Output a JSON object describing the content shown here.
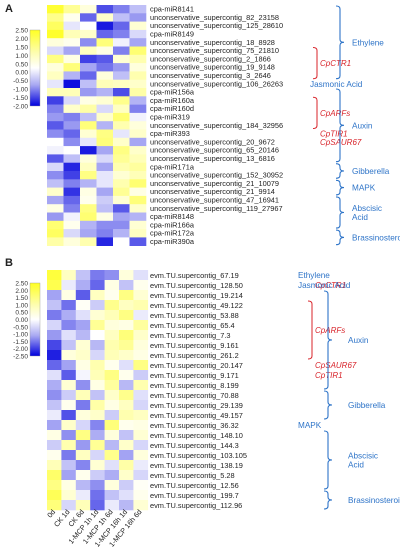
{
  "chart_data": [
    {
      "type": "heatmap",
      "panel_label": "A",
      "colorbar": {
        "ticks": [
          "2.50",
          "2.00",
          "1.50",
          "1.00",
          "0.50",
          "0.00",
          "-0.50",
          "-1.00",
          "-1.50",
          "-2.00"
        ],
        "min": -2.0,
        "max": 2.5,
        "colors": {
          "low": "#0000dd",
          "mid": "#ffffff",
          "high": "#ffff22"
        }
      },
      "columns": 6,
      "rows": [
        "cpa-miR8141",
        "unconservative_supercontig_82_23158",
        "unconservative_supercontig_125_28610",
        "cpa-miR8149",
        "unconservative_supercontig_18_8928",
        "unconservative_supercontig_75_21810",
        "unconservative_supercontig_2_1866",
        "unconservative_supercontig_19_9148",
        "unconservative_supercontig_3_2646",
        "unconservative_supercontig_106_26263",
        "cpa-miR156a",
        "cpa-miR160a",
        "cpa-miR160d",
        "cpa-miR319",
        "unconservative_supercontig_184_32956",
        "cpa-miR393",
        "unconservative_supercontig_20_9672",
        "unconservative_supercontig_65_20146",
        "unconservative_supercontig_13_6816",
        "cpa-miR171a",
        "unconservative_supercontig_152_30952",
        "unconservative_supercontig_21_10079",
        "unconservative_supercontig_21_9914",
        "unconservative_supercontig_47_16941",
        "unconservative_supercontig_119_27967",
        "cpa-miR8148",
        "cpa-miR166a",
        "cpa-miR172a",
        "cpa-miR390a"
      ],
      "values": [
        [
          2.3,
          1.2,
          0.4,
          -1.4,
          -1.0,
          -0.5
        ],
        [
          1.3,
          0.2,
          -1.2,
          0.6,
          -0.5,
          -0.8
        ],
        [
          1.8,
          -0.2,
          0.0,
          -1.8,
          -1.2,
          0.5
        ],
        [
          2.4,
          0.8,
          0.6,
          -1.2,
          -1.0,
          -0.3
        ],
        [
          0.4,
          0.2,
          -0.9,
          1.5,
          -0.1,
          -0.7
        ],
        [
          -0.3,
          -0.7,
          0.7,
          0.3,
          -1.0,
          1.6
        ],
        [
          1.4,
          0.3,
          -1.5,
          -1.3,
          0.5,
          0.9
        ],
        [
          0.4,
          1.5,
          -0.7,
          -1.1,
          -0.8,
          0.4
        ],
        [
          0.7,
          -0.6,
          -1.2,
          0.4,
          -0.5,
          0.9
        ],
        [
          -0.2,
          -1.9,
          -0.5,
          0.8,
          0.7,
          0.6
        ],
        [
          0.8,
          0.8,
          -0.8,
          -0.6,
          -1.4,
          1.0
        ],
        [
          -1.5,
          -0.3,
          0.3,
          0.5,
          1.3,
          -0.6
        ],
        [
          -1.0,
          0.6,
          1.0,
          -0.3,
          0.7,
          -1.0
        ],
        [
          -0.8,
          -1.0,
          -0.5,
          0.6,
          1.6,
          -0.1
        ],
        [
          -1.3,
          -0.8,
          1.5,
          -0.6,
          0.9,
          0.4
        ],
        [
          -0.9,
          -1.2,
          0.5,
          1.4,
          -0.2,
          0.6
        ],
        [
          0.0,
          -0.9,
          -0.2,
          1.5,
          0.6,
          -0.7
        ],
        [
          -0.1,
          0.0,
          -1.8,
          -0.7,
          1.4,
          0.6
        ],
        [
          -1.3,
          -0.5,
          0.4,
          -0.3,
          1.2,
          0.8
        ],
        [
          -0.3,
          -1.7,
          0.7,
          -0.7,
          0.9,
          1.1
        ],
        [
          -0.9,
          -1.5,
          1.4,
          -0.2,
          0.5,
          0.8
        ],
        [
          -0.5,
          -1.0,
          -0.6,
          -0.2,
          0.9,
          1.6
        ],
        [
          0.6,
          -1.6,
          0.3,
          -0.7,
          1.2,
          0.3
        ],
        [
          -0.7,
          -1.2,
          0.2,
          -0.4,
          0.5,
          1.5
        ],
        [
          0.3,
          -1.0,
          1.4,
          -0.5,
          -1.3,
          0.6
        ],
        [
          -0.8,
          -0.1,
          1.6,
          0.3,
          -0.7,
          -0.6
        ],
        [
          1.6,
          0.2,
          -0.6,
          -0.9,
          -0.9,
          0.5
        ],
        [
          1.8,
          -0.3,
          -0.7,
          -1.0,
          -0.6,
          0.7
        ],
        [
          1.0,
          0.4,
          0.9,
          -1.7,
          0.0,
          -1.3
        ]
      ],
      "annotations": [
        {
          "text": "CpCTR1",
          "row_start": 5,
          "row_end": 8,
          "color": "#d8232a"
        },
        {
          "text": "CpARFs",
          "row_start": 11,
          "row_end": 14,
          "color": "#d8232a"
        },
        {
          "text": "CpTIR1",
          "row_start": 15,
          "row_end": 15,
          "color": "#d8232a"
        },
        {
          "text": "CpSAUR67",
          "row_start": 16,
          "row_end": 16,
          "color": "#d8232a"
        }
      ],
      "groups": [
        {
          "text": "Ethylene",
          "row_start": 0,
          "row_end": 8,
          "color": "#2e74c8"
        },
        {
          "text": "Jasmonic Acid",
          "row_start": 9,
          "row_end": 9,
          "color": "#2e74c8"
        },
        {
          "text": "Auxin",
          "row_start": 10,
          "row_end": 18,
          "color": "#2e74c8"
        },
        {
          "text": "Gibberella",
          "row_start": 19,
          "row_end": 20,
          "color": "#2e74c8"
        },
        {
          "text": "MAPK",
          "row_start": 21,
          "row_end": 22,
          "color": "#2e74c8"
        },
        {
          "text": "Abscisic\nAcid",
          "row_start": 23,
          "row_end": 26,
          "color": "#2e74c8"
        },
        {
          "text": "Brassinosteroid",
          "row_start": 27,
          "row_end": 28,
          "color": "#2e74c8"
        }
      ]
    },
    {
      "type": "heatmap",
      "panel_label": "B",
      "colorbar": {
        "ticks": [
          "2.50",
          "2.00",
          "1.50",
          "1.00",
          "0.50",
          "0.00",
          "-0.50",
          "-1.00",
          "-1.50",
          "-2.00",
          "-2.50"
        ],
        "min": -2.5,
        "max": 2.5,
        "colors": {
          "low": "#0000dd",
          "mid": "#ffffff",
          "high": "#ffff22"
        }
      },
      "columns": [
        "0d",
        "CK 1d",
        "CK 6d",
        "1-MCP 1h 1d",
        "1-MCP 1h 6d",
        "1-MCP 16h 1d",
        "1-MCP 16h 6d"
      ],
      "rows": [
        "evm.TU.supercontig_67.19",
        "evm.TU.supercontig_128.50",
        "evm.TU.supercontig_19.214",
        "evm.TU.supercontig_49.122",
        "evm.TU.supercontig_53.88",
        "evm.TU.supercontig_65.4",
        "evm.TU.supercontig_7.3",
        "evm.TU.supercontig_9.161",
        "evm.TU.supercontig_261.2",
        "evm.TU.supercontig_20.147",
        "evm.TU.supercontig_9.171",
        "evm.TU.supercontig_8.199",
        "evm.TU.supercontig_70.88",
        "evm.TU.supercontig_29.139",
        "evm.TU.supercontig_49.157",
        "evm.TU.supercontig_36.32",
        "evm.TU.supercontig_148.10",
        "evm.TU.supercontig_144.3",
        "evm.TU.supercontig_103.105",
        "evm.TU.supercontig_138.19",
        "evm.TU.supercontig_5.28",
        "evm.TU.supercontig_12.56",
        "evm.TU.supercontig_199.7",
        "evm.TU.supercontig_112.96"
      ],
      "values": [
        [
          2.2,
          0.7,
          -0.6,
          -1.3,
          -1.1,
          0.4,
          -0.3
        ],
        [
          2.0,
          -0.2,
          -0.8,
          -1.5,
          0.3,
          -0.6,
          0.2
        ],
        [
          -0.9,
          0.3,
          -1.6,
          0.7,
          0.2,
          1.4,
          0.5
        ],
        [
          -0.6,
          -1.4,
          0.1,
          -0.5,
          1.3,
          0.7,
          0.9
        ],
        [
          -1.3,
          -0.8,
          -0.3,
          0.5,
          0.8,
          1.4,
          -0.2
        ],
        [
          -0.4,
          -1.2,
          -0.9,
          1.2,
          0.4,
          0.3,
          1.1
        ],
        [
          -1.0,
          -0.3,
          -0.7,
          0.0,
          0.7,
          1.5,
          0.6
        ],
        [
          -1.8,
          -0.6,
          0.5,
          -0.7,
          0.9,
          1.2,
          0.4
        ],
        [
          -2.2,
          0.4,
          0.6,
          -0.4,
          0.8,
          0.6,
          0.3
        ],
        [
          -1.5,
          -0.9,
          0.3,
          0.9,
          0.2,
          -0.3,
          1.4
        ],
        [
          -0.3,
          -1.6,
          -0.1,
          0.8,
          1.4,
          0.2,
          -0.5
        ],
        [
          -0.8,
          0.5,
          -1.1,
          0.3,
          1.1,
          -0.7,
          0.9
        ],
        [
          -1.1,
          -0.5,
          0.8,
          -0.6,
          0.6,
          1.3,
          -0.3
        ],
        [
          -0.6,
          0.2,
          -1.3,
          1.0,
          0.3,
          0.7,
          -0.4
        ],
        [
          -0.2,
          -1.7,
          0.4,
          0.6,
          -0.5,
          0.9,
          0.7
        ],
        [
          -0.9,
          0.6,
          -0.4,
          -1.2,
          1.5,
          0.2,
          0.3
        ],
        [
          0.3,
          -1.1,
          1.4,
          -0.8,
          0.4,
          -0.6,
          0.5
        ],
        [
          -0.5,
          0.9,
          -1.0,
          1.2,
          -0.7,
          0.6,
          -0.4
        ],
        [
          0.2,
          -1.3,
          0.7,
          -0.4,
          1.3,
          -0.9,
          0.4
        ],
        [
          0.8,
          -0.6,
          -1.2,
          0.5,
          -0.3,
          1.0,
          -0.2
        ],
        [
          1.7,
          -0.9,
          0.2,
          -0.5,
          -0.8,
          0.6,
          -0.4
        ],
        [
          1.4,
          0.3,
          -0.7,
          -1.1,
          0.4,
          -0.5,
          0.1
        ],
        [
          1.9,
          0.5,
          -0.2,
          -1.4,
          -0.6,
          -0.3,
          0.2
        ],
        [
          1.5,
          -0.4,
          0.8,
          -1.5,
          -0.2,
          -0.7,
          0.5
        ]
      ],
      "annotations": [
        {
          "text": "CpCTR1",
          "row_start": 1,
          "row_end": 1,
          "color": "#d8232a"
        },
        {
          "text": "CpARFs",
          "row_start": 3,
          "row_end": 8,
          "color": "#d8232a"
        },
        {
          "text": "CpSAUR67",
          "row_start": 9,
          "row_end": 9,
          "color": "#d8232a"
        },
        {
          "text": "CpTIR1",
          "row_start": 10,
          "row_end": 10,
          "color": "#d8232a"
        }
      ],
      "groups": [
        {
          "text": "Ethylene",
          "row_start": 0,
          "row_end": 0,
          "color": "#2e74c8"
        },
        {
          "text": "Jasmonic Acid",
          "row_start": 1,
          "row_end": 1,
          "color": "#2e74c8"
        },
        {
          "text": "Auxin",
          "row_start": 2,
          "row_end": 11,
          "color": "#2e74c8"
        },
        {
          "text": "Gibberella",
          "row_start": 12,
          "row_end": 14,
          "color": "#2e74c8"
        },
        {
          "text": "MAPK",
          "row_start": 15,
          "row_end": 15,
          "color": "#2e74c8"
        },
        {
          "text": "Abscisic\nAcid",
          "row_start": 16,
          "row_end": 21,
          "color": "#2e74c8"
        },
        {
          "text": "Brassinosteroid",
          "row_start": 22,
          "row_end": 23,
          "color": "#2e74c8"
        }
      ]
    }
  ]
}
